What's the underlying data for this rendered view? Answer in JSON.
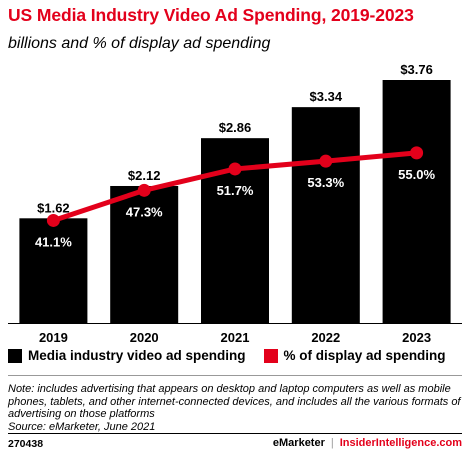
{
  "header": {
    "title": "US Media Industry Video Ad Spending, 2019-2023",
    "subtitle": "billions and % of display ad spending"
  },
  "chart_data": {
    "type": "bar",
    "categories": [
      "2019",
      "2020",
      "2021",
      "2022",
      "2023"
    ],
    "series": [
      {
        "name": "Media industry video ad spending",
        "type": "bar",
        "values": [
          1.62,
          2.12,
          2.86,
          3.34,
          3.76
        ],
        "labels": [
          "$1.62",
          "$2.12",
          "$2.86",
          "$3.34",
          "$3.76"
        ],
        "color": "#000000"
      },
      {
        "name": "% of display ad spending",
        "type": "line",
        "values": [
          41.1,
          47.3,
          51.7,
          53.3,
          55.0
        ],
        "labels": [
          "41.1%",
          "47.3%",
          "51.7%",
          "53.3%",
          "55.0%"
        ],
        "color": "#e3001b"
      }
    ],
    "ylim": [
      0,
      3.76
    ],
    "line_ylim": [
      20,
      70
    ],
    "grid": false,
    "legend_position": "bottom-left"
  },
  "notes": {
    "note": "Note: includes advertising that appears on desktop and laptop computers as well as mobile phones, tablets, and other internet-connected devices, and includes all the various formats of advertising on those platforms",
    "source": "Source: eMarketer, June 2021"
  },
  "footer": {
    "id": "270438",
    "brand": "eMarketer",
    "brand2": "InsiderIntelligence.com",
    "separator": "|"
  },
  "colors": {
    "accent": "#e3001b",
    "bar": "#000000",
    "text": "#000000"
  }
}
